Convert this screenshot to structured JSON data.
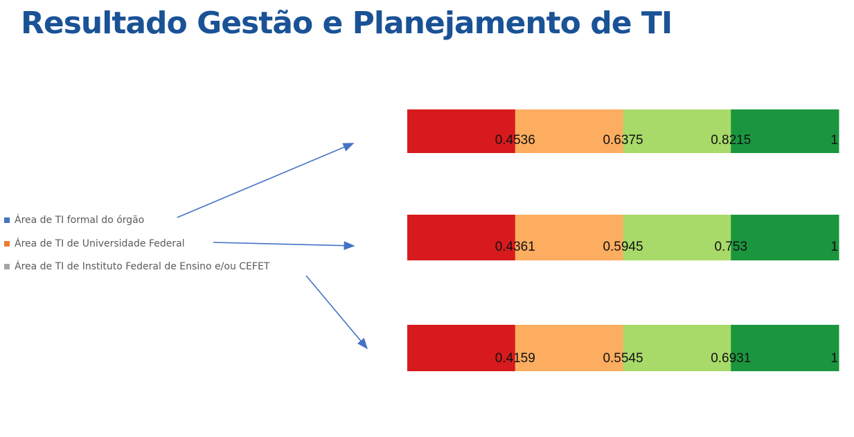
{
  "title": "Resultado Gestão e Planejamento de TI",
  "legend": [
    {
      "label": "Área de TI formal do órgão",
      "color": "#4472c4"
    },
    {
      "label": "Área de TI de Universidade Federal",
      "color": "#ed7d31"
    },
    {
      "label": "Área de TI de Instituto Federal de Ensino e/ou CEFET",
      "color": "#a5a5a5"
    }
  ],
  "chart_data": {
    "type": "bar",
    "segment_colors": [
      "#d71a1d",
      "#fdad60",
      "#a8da6a",
      "#1b963f"
    ],
    "bars": [
      {
        "thresholds": [
          "0.4536",
          "0.6375",
          "0.8215",
          "1"
        ]
      },
      {
        "thresholds": [
          "0.4361",
          "0.5945",
          "0.753",
          "1"
        ]
      },
      {
        "thresholds": [
          "0.4159",
          "0.5545",
          "0.6931",
          "1"
        ]
      }
    ],
    "arrow_color": "#4472c4"
  }
}
